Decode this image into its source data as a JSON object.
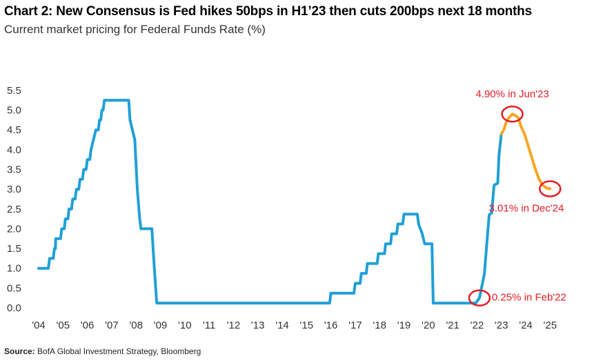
{
  "title": "Chart 2: New Consensus is Fed hikes 50bps in H1’23 then cuts 200bps next 18 months",
  "subtitle": "Current market pricing for Federal Funds Rate (%)",
  "source_label": "Source:",
  "source_text": "BofA Global Investment Strategy, Bloomberg",
  "colors": {
    "history": "#1f9fd8",
    "forecast": "#f5a623",
    "annotation": "#e31b23"
  },
  "chart_data": {
    "type": "line",
    "title": "Chart 2: New Consensus is Fed hikes 50bps in H1’23 then cuts 200bps next 18 months",
    "subtitle": "Current market pricing for Federal Funds Rate (%)",
    "xlabel": "",
    "ylabel": "",
    "xlim": [
      2004,
      2025.5
    ],
    "ylim": [
      0,
      5.5
    ],
    "grid": false,
    "x_ticks": [
      "'04",
      "'05",
      "'06",
      "'07",
      "'08",
      "'09",
      "'10",
      "'11",
      "'12",
      "'13",
      "'14",
      "'15",
      "'16",
      "'17",
      "'18",
      "'19",
      "'20",
      "'21",
      "'22",
      "'23",
      "'24",
      "'25"
    ],
    "y_ticks": [
      "0.0",
      "0.5",
      "1.0",
      "1.5",
      "2.0",
      "2.5",
      "3.0",
      "3.5",
      "4.0",
      "4.5",
      "5.0",
      "5.5"
    ],
    "series": [
      {
        "name": "",
        "points": [
          [
            2004.0,
            1.0
          ],
          [
            2004.4,
            1.0
          ],
          [
            2004.45,
            1.25
          ],
          [
            2004.6,
            1.25
          ],
          [
            2004.65,
            1.5
          ],
          [
            2004.69,
            1.5
          ],
          [
            2004.7,
            1.75
          ],
          [
            2004.9,
            1.75
          ],
          [
            2004.95,
            2.0
          ],
          [
            2005.05,
            2.0
          ],
          [
            2005.1,
            2.25
          ],
          [
            2005.2,
            2.25
          ],
          [
            2005.25,
            2.5
          ],
          [
            2005.35,
            2.5
          ],
          [
            2005.4,
            2.75
          ],
          [
            2005.5,
            2.75
          ],
          [
            2005.55,
            3.0
          ],
          [
            2005.65,
            3.0
          ],
          [
            2005.7,
            3.25
          ],
          [
            2005.8,
            3.25
          ],
          [
            2005.85,
            3.5
          ],
          [
            2005.95,
            3.5
          ],
          [
            2006.0,
            3.75
          ],
          [
            2006.1,
            3.75
          ],
          [
            2006.15,
            4.0
          ],
          [
            2006.25,
            4.25
          ],
          [
            2006.35,
            4.5
          ],
          [
            2006.45,
            4.5
          ],
          [
            2006.5,
            4.75
          ],
          [
            2006.55,
            4.75
          ],
          [
            2006.6,
            5.0
          ],
          [
            2006.65,
            5.0
          ],
          [
            2006.7,
            5.25
          ],
          [
            2007.7,
            5.25
          ],
          [
            2007.75,
            4.75
          ],
          [
            2007.85,
            4.5
          ],
          [
            2007.95,
            4.25
          ],
          [
            2008.05,
            3.0
          ],
          [
            2008.15,
            2.25
          ],
          [
            2008.2,
            2.0
          ],
          [
            2008.65,
            2.0
          ],
          [
            2008.75,
            1.0
          ],
          [
            2008.85,
            0.12
          ],
          [
            2015.95,
            0.12
          ],
          [
            2016.0,
            0.37
          ],
          [
            2016.95,
            0.37
          ],
          [
            2017.0,
            0.62
          ],
          [
            2017.2,
            0.62
          ],
          [
            2017.25,
            0.87
          ],
          [
            2017.45,
            0.87
          ],
          [
            2017.5,
            1.12
          ],
          [
            2017.9,
            1.12
          ],
          [
            2017.95,
            1.37
          ],
          [
            2018.2,
            1.37
          ],
          [
            2018.25,
            1.62
          ],
          [
            2018.45,
            1.62
          ],
          [
            2018.5,
            1.87
          ],
          [
            2018.7,
            1.87
          ],
          [
            2018.75,
            2.12
          ],
          [
            2018.95,
            2.12
          ],
          [
            2019.0,
            2.37
          ],
          [
            2019.55,
            2.37
          ],
          [
            2019.6,
            2.12
          ],
          [
            2019.75,
            1.87
          ],
          [
            2019.85,
            1.62
          ],
          [
            2020.15,
            1.62
          ],
          [
            2020.2,
            0.12
          ],
          [
            2021.95,
            0.12
          ],
          [
            2022.1,
            0.25
          ],
          [
            2022.3,
            0.85
          ],
          [
            2022.4,
            1.6
          ],
          [
            2022.5,
            2.35
          ],
          [
            2022.6,
            2.4
          ],
          [
            2022.7,
            3.1
          ],
          [
            2022.85,
            3.15
          ],
          [
            2022.9,
            3.85
          ],
          [
            2023.0,
            4.4
          ]
        ]
      },
      {
        "name": "",
        "points": [
          [
            2023.0,
            4.4
          ],
          [
            2023.1,
            4.5
          ],
          [
            2023.2,
            4.7
          ],
          [
            2023.3,
            4.8
          ],
          [
            2023.45,
            4.9
          ],
          [
            2023.6,
            4.85
          ],
          [
            2023.7,
            4.8
          ],
          [
            2023.8,
            4.6
          ],
          [
            2023.95,
            4.4
          ],
          [
            2024.1,
            4.1
          ],
          [
            2024.25,
            3.8
          ],
          [
            2024.4,
            3.5
          ],
          [
            2024.55,
            3.25
          ],
          [
            2024.7,
            3.1
          ],
          [
            2024.85,
            3.03
          ],
          [
            2025.0,
            3.01
          ]
        ]
      }
    ],
    "annotations": [
      {
        "text": "4.90% in Jun'23",
        "x": 2023.45,
        "y": 4.9
      },
      {
        "text": "3.01% in Dec'24",
        "x": 2025.0,
        "y": 3.01
      },
      {
        "text": "0.25% in Feb'22",
        "x": 2022.1,
        "y": 0.25
      }
    ]
  }
}
